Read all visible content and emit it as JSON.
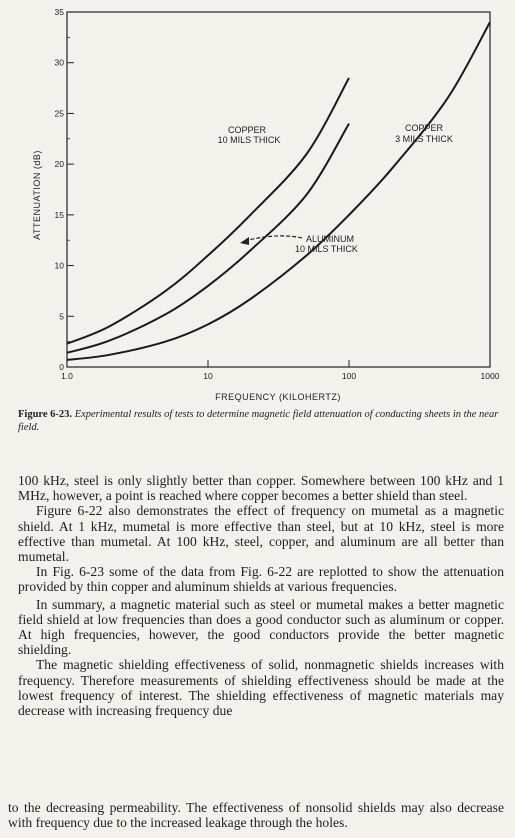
{
  "figure": {
    "chart_data": {
      "type": "line",
      "xlabel": "FREQUENCY (KILOHERTZ)",
      "ylabel": "ATTENUATION (dB)",
      "x_scale": "log",
      "xlim": [
        1.0,
        1000
      ],
      "ylim": [
        0,
        35
      ],
      "x_ticks": [
        "1.0",
        "10",
        "100",
        "1000"
      ],
      "y_ticks": [
        "0",
        "5",
        "10",
        "15",
        "20",
        "25",
        "30",
        "35"
      ],
      "grid": false,
      "series": [
        {
          "name": "COPPER 10 MILS THICK",
          "x": [
            1.0,
            2,
            5,
            10,
            20,
            50,
            100
          ],
          "y": [
            2.3,
            4.0,
            7.5,
            11.0,
            15.0,
            21.0,
            28.5
          ]
        },
        {
          "name": "ALUMINUM 10 MILS THICK",
          "x": [
            1.0,
            2,
            5,
            10,
            20,
            50,
            100
          ],
          "y": [
            1.4,
            2.6,
            5.2,
            8.0,
            11.5,
            17.0,
            24.0
          ]
        },
        {
          "name": "COPPER 3 MILS THICK",
          "x": [
            1.0,
            2,
            5,
            10,
            20,
            50,
            100,
            200,
            500,
            1000
          ],
          "y": [
            0.7,
            1.2,
            2.5,
            4.2,
            6.7,
            11.0,
            15.0,
            19.5,
            26.5,
            34.0
          ]
        }
      ],
      "annotations": {
        "copper10_line1": "COPPER",
        "copper10_line2": "10 MILS THICK",
        "copper3_line1": "COPPER",
        "copper3_line2": "3 MILS THICK",
        "aluminum_line1": "ALUMINUM",
        "aluminum_line2": "10 MILS THICK"
      }
    },
    "caption_label": "Figure 6-23.",
    "caption_text": "Experimental results of tests to determine magnetic field attenuation of conducting sheets in the near field."
  },
  "paragraphs": [
    "100 kHz, steel is only slightly better than copper. Somewhere between 100 kHz and 1 MHz, however, a point is reached where copper becomes a better shield than steel.",
    "Figure 6-22 also demonstrates the effect of frequency on mumetal as a magnetic shield. At 1 kHz, mumetal is more effective than steel, but at 10 kHz, steel is more effective than mumetal. At 100 kHz, steel, copper, and aluminum are all better than mumetal.",
    "In Fig. 6-23 some of the data from Fig. 6-22 are replotted to show the attenuation provided by thin copper and aluminum shields at various frequencies.",
    "In summary, a magnetic material such as steel or mumetal makes a better magnetic field shield at low frequencies than does a good conductor such as aluminum or copper. At high frequencies, however, the good conductors provide the better magnetic shielding.",
    "The magnetic shielding effectiveness of solid, nonmagnetic shields increases with frequency. Therefore measurements of shielding effectiveness should be made at the lowest frequency of interest. The shielding effectiveness of magnetic materials may decrease with increasing frequency due"
  ],
  "continuation": "to the decreasing permeability. The effectiveness of nonsolid shields may also decrease with frequency due to the increased leakage through the holes."
}
